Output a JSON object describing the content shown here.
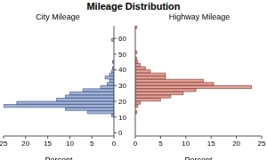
{
  "chart_data": {
    "type": "bar",
    "title": "Mileage Distribution",
    "orientation": "horizontal",
    "bins": [
      10,
      12,
      14,
      16,
      18,
      20,
      22,
      24,
      26,
      28,
      30,
      32,
      34,
      36,
      38,
      40,
      42,
      44,
      46,
      48,
      50,
      52,
      54,
      56,
      58,
      60,
      62,
      64,
      66,
      68
    ],
    "series": [
      {
        "name": "City Mileage",
        "color": "#a4b6dd",
        "values": [
          0.5,
          6,
          11,
          25,
          22,
          13,
          11,
          10,
          7,
          3,
          1.5,
          1,
          2,
          1,
          0.5,
          0.3,
          0,
          0.3,
          0,
          0,
          0,
          0,
          0,
          0,
          0.5,
          0,
          0,
          0,
          0
        ]
      },
      {
        "name": "Highway Mileage",
        "color": "#e3a297",
        "values": [
          0,
          0.3,
          0,
          0.5,
          1,
          5,
          7,
          9.5,
          12,
          23,
          15.5,
          13.5,
          6,
          6,
          3,
          2,
          1,
          0.5,
          0.3,
          0,
          0.3,
          0,
          0,
          0,
          0,
          0,
          0,
          0,
          0.3
        ]
      }
    ],
    "xlabel": "Percent",
    "xlim": [
      0,
      25
    ],
    "xticks": [
      0,
      5,
      10,
      15,
      20,
      25
    ],
    "ylim": [
      -2,
      68
    ],
    "yticks": [
      0,
      10,
      20,
      30,
      40,
      50,
      60
    ]
  }
}
